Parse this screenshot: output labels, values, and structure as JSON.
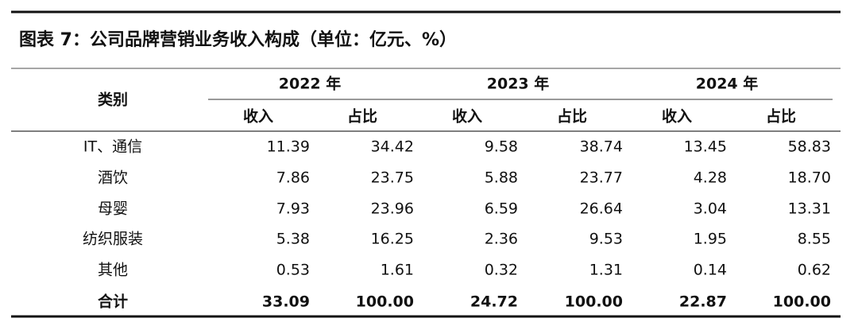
{
  "title": "图表 7：公司品牌营销业务收入构成（单位：亿元、%）",
  "table": {
    "corner": "类别",
    "years": [
      "2022 年",
      "2023 年",
      "2024 年"
    ],
    "subheaders": [
      "收入",
      "占比",
      "收入",
      "占比",
      "收入",
      "占比"
    ],
    "rows": [
      [
        "IT、通信",
        "11.39",
        "34.42",
        "9.58",
        "38.74",
        "13.45",
        "58.83"
      ],
      [
        "酒饮",
        "7.86",
        "23.75",
        "5.88",
        "23.77",
        "4.28",
        "18.70"
      ],
      [
        "母婴",
        "7.93",
        "23.96",
        "6.59",
        "26.64",
        "3.04",
        "13.31"
      ],
      [
        "纺织服装",
        "5.38",
        "16.25",
        "2.36",
        "9.53",
        "1.95",
        "8.55"
      ],
      [
        "其他",
        "0.53",
        "1.61",
        "0.32",
        "1.31",
        "0.14",
        "0.62"
      ],
      [
        "合计",
        "33.09",
        "100.00",
        "24.72",
        "100.00",
        "22.87",
        "100.00"
      ]
    ]
  }
}
